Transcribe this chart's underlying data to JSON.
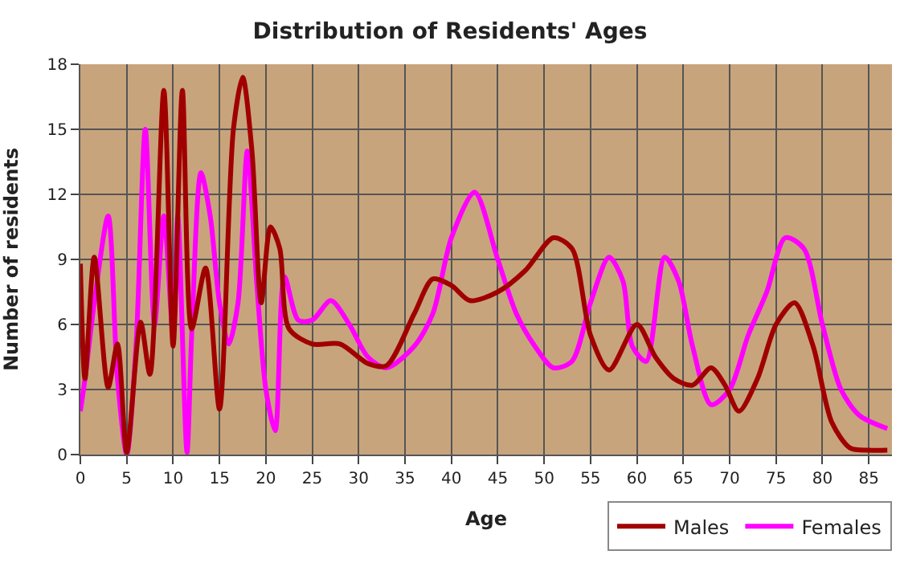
{
  "chart_data": {
    "type": "line",
    "title": "Distribution of Residents' Ages",
    "xlabel": "Age",
    "ylabel": "Number of residents",
    "xlim": [
      0,
      87.5
    ],
    "xticks": [
      0,
      5,
      10,
      15,
      20,
      25,
      30,
      35,
      40,
      45,
      50,
      55,
      60,
      65,
      70,
      75,
      80,
      85
    ],
    "ylim": [
      0,
      18
    ],
    "yticks": [
      0,
      3,
      6,
      9,
      12,
      15,
      18
    ],
    "grid": true,
    "legend": "bottom right",
    "series": [
      {
        "name": "Males",
        "color": "#a00000",
        "x": [
          0,
          0.5,
          1.5,
          3,
          4,
          5,
          6.5,
          7.5,
          9,
          10,
          11,
          12,
          13.5,
          15,
          16.5,
          17.5,
          18.5,
          19.5,
          20.5,
          21.5,
          22.5,
          25,
          28,
          31,
          33,
          36,
          38,
          40,
          42,
          45,
          48,
          51,
          53,
          55,
          57,
          60,
          62,
          64,
          66,
          68,
          69.5,
          71,
          73,
          75,
          77,
          79,
          81,
          83,
          85,
          87
        ],
        "values": [
          8.8,
          3.5,
          9.1,
          3.1,
          5.1,
          0.1,
          6.1,
          3.7,
          16.8,
          5,
          16.8,
          5.8,
          8.6,
          2.1,
          15,
          17.4,
          14,
          7,
          10.5,
          9.5,
          5.8,
          5.1,
          5.1,
          4.2,
          4.1,
          6.5,
          8.1,
          7.8,
          7.1,
          7.5,
          8.5,
          10,
          9.5,
          5.5,
          3.9,
          6,
          4.5,
          3.5,
          3.2,
          4,
          3.2,
          2,
          3.5,
          6,
          7,
          5,
          1.5,
          0.3,
          0.2,
          0.2
        ]
      },
      {
        "name": "Females",
        "color": "#ff00ff",
        "x": [
          0,
          0.5,
          1.5,
          3,
          4,
          5,
          6,
          7,
          8,
          9,
          10,
          10.5,
          11.5,
          12,
          13,
          14,
          15,
          16,
          17,
          18,
          19,
          20,
          21,
          22,
          23.5,
          25,
          27,
          29,
          31,
          33,
          36,
          38,
          40,
          42.5,
          45,
          47,
          49,
          51,
          53,
          55,
          57,
          58.5,
          59.5,
          61,
          63,
          64.5,
          66,
          68,
          70,
          72,
          74,
          76,
          78,
          80,
          82,
          84,
          87
        ],
        "values": [
          2,
          3.5,
          7,
          11,
          3.5,
          0,
          5,
          15,
          6,
          11,
          5.5,
          11,
          0.1,
          5.5,
          13,
          11,
          7,
          5.1,
          7,
          14,
          8,
          3,
          1.1,
          8.2,
          6.2,
          6.2,
          7.1,
          6,
          4.5,
          4,
          5,
          6.5,
          10,
          12.1,
          9,
          6.5,
          5,
          4,
          4.3,
          7,
          9.1,
          8,
          5,
          4.3,
          9.1,
          8,
          5,
          2.3,
          3,
          5.5,
          7.5,
          10,
          9.5,
          6,
          3,
          1.8,
          1.2
        ]
      }
    ]
  }
}
